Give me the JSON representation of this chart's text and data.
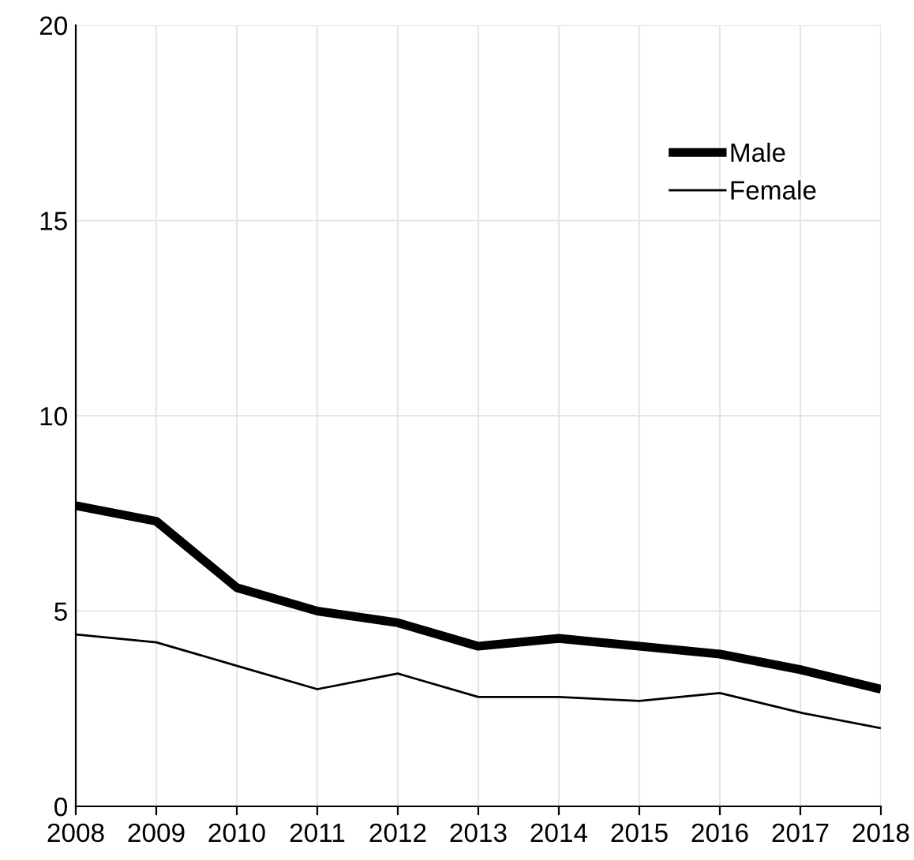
{
  "chart_data": {
    "type": "line",
    "x": [
      2008,
      2009,
      2010,
      2011,
      2012,
      2013,
      2014,
      2015,
      2016,
      2017,
      2018
    ],
    "series": [
      {
        "name": "Male",
        "color": "#000000",
        "values": [
          7.7,
          7.3,
          5.6,
          5.0,
          4.7,
          4.1,
          4.3,
          4.1,
          3.9,
          3.5,
          3.0
        ]
      },
      {
        "name": "Female",
        "color": "#000000",
        "values": [
          4.4,
          4.2,
          3.6,
          3.0,
          3.4,
          2.8,
          2.8,
          2.7,
          2.9,
          2.4,
          2.0
        ]
      }
    ],
    "xlim": [
      2008,
      2018
    ],
    "xticks": [
      2008,
      2009,
      2010,
      2011,
      2012,
      2013,
      2014,
      2015,
      2016,
      2017,
      2018
    ],
    "ylim": [
      0,
      20
    ],
    "yticks": [
      0,
      5,
      10,
      15,
      20
    ],
    "grid": true,
    "legend": "top right"
  }
}
